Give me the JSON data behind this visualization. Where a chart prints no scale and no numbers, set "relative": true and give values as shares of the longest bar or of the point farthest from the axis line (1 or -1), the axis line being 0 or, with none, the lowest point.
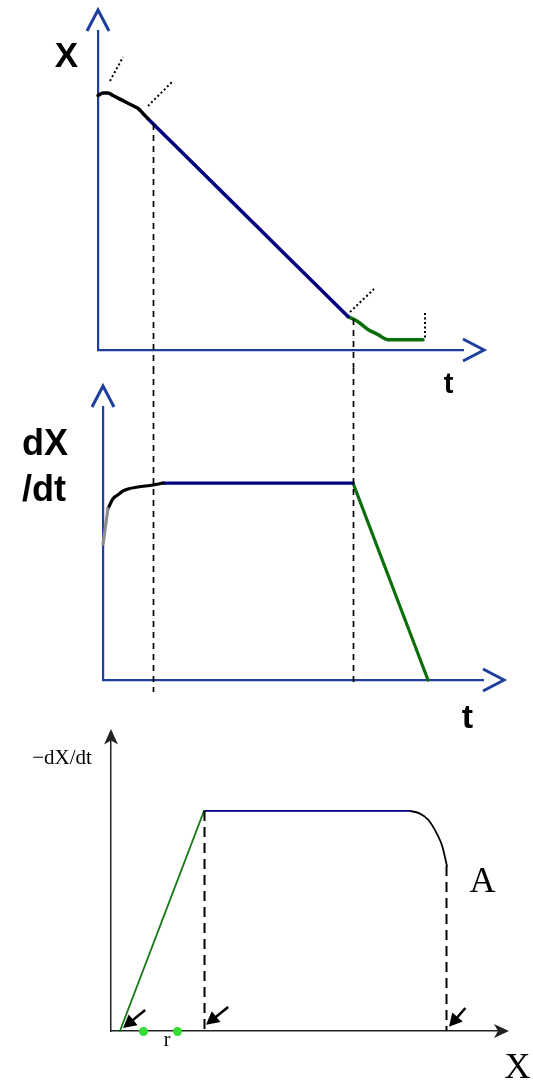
{
  "chart_data": [
    {
      "type": "line",
      "xlabel": "t",
      "ylabel": "X",
      "relative": true,
      "categories": [
        null,
        null,
        null,
        null,
        null,
        null,
        null,
        null,
        null,
        null,
        null,
        null,
        null,
        null,
        null,
        null,
        null,
        null,
        null,
        null,
        null,
        null,
        null,
        null,
        null,
        null,
        null,
        null,
        null,
        null,
        null,
        null,
        null,
        null,
        null,
        null,
        null,
        null,
        null,
        null,
        null,
        null,
        null,
        null,
        null,
        null,
        null,
        null,
        null,
        null,
        null,
        null,
        null,
        null,
        null,
        null,
        null,
        null,
        null,
        null,
        null,
        null,
        null,
        null,
        null,
        null,
        null,
        null,
        null,
        null,
        null,
        null,
        null,
        null
      ],
      "series": [
        {
          "color": "#000000",
          "values": [
            0.99,
            1,
            1,
            0.99,
            0.98,
            0.97,
            0.96,
            0.95,
            0.94,
            0.92,
            0.9,
            null,
            null,
            null,
            null,
            null,
            null,
            null,
            null,
            null,
            null,
            null,
            null,
            null,
            null,
            null,
            null,
            null,
            null,
            null,
            null,
            null,
            null,
            null,
            null,
            null,
            null,
            null,
            null,
            null,
            null,
            null,
            null,
            null,
            null,
            null,
            null,
            null,
            null,
            null,
            null,
            null,
            null,
            null,
            null,
            null,
            null,
            null,
            null,
            null,
            null,
            null,
            null,
            null,
            null,
            null,
            null,
            null,
            null,
            null,
            null,
            null,
            null,
            null
          ]
        },
        {
          "color": "#000080",
          "values": [
            null,
            null,
            null,
            null,
            null,
            null,
            null,
            null,
            null,
            null,
            0.9,
            null,
            null,
            null,
            null,
            null,
            null,
            null,
            null,
            null,
            null,
            null,
            null,
            null,
            null,
            null,
            null,
            null,
            null,
            null,
            null,
            null,
            null,
            null,
            null,
            null,
            null,
            null,
            null,
            null,
            null,
            null,
            null,
            null,
            null,
            null,
            null,
            null,
            null,
            null,
            0.13,
            null,
            null,
            null,
            null,
            null,
            null,
            null,
            null,
            null,
            null,
            null,
            null,
            null,
            null,
            null,
            null,
            null,
            null,
            null,
            null,
            null,
            null,
            null
          ]
        },
        {
          "color": "#0a6e0a",
          "values": [
            null,
            null,
            null,
            null,
            null,
            null,
            null,
            null,
            null,
            null,
            null,
            null,
            null,
            null,
            null,
            null,
            null,
            null,
            null,
            null,
            null,
            null,
            null,
            null,
            null,
            null,
            null,
            null,
            null,
            null,
            null,
            null,
            null,
            null,
            null,
            null,
            null,
            null,
            null,
            null,
            null,
            null,
            null,
            null,
            null,
            null,
            null,
            null,
            null,
            null,
            0.13,
            null,
            0.11,
            null,
            0.08,
            null,
            0.06,
            null,
            0.04,
            null,
            0.04,
            null,
            0.04,
            null,
            null,
            0.04,
            null,
            null,
            null,
            null,
            null,
            null,
            null,
            null
          ]
        }
      ]
    },
    {
      "type": "line",
      "xlabel": "t",
      "ylabel": "dX\n/dt",
      "relative": true,
      "categories": [
        null,
        null,
        null,
        null,
        null,
        null,
        null,
        null,
        null,
        null,
        null,
        null,
        null,
        null,
        null,
        null,
        null,
        null,
        null,
        null,
        null,
        null,
        null,
        null,
        null,
        null,
        null,
        null,
        null,
        null,
        null,
        null,
        null,
        null,
        null,
        null,
        null,
        null,
        null,
        null,
        null,
        null,
        null,
        null,
        null,
        null,
        null,
        null,
        null,
        null,
        null,
        null,
        null,
        null,
        null,
        null,
        null,
        null,
        null,
        null,
        null,
        null,
        null,
        null,
        null,
        null,
        null,
        null,
        null,
        null,
        null,
        null,
        null,
        null,
        null,
        null,
        null
      ],
      "series": [
        {
          "color": "#8c8c8c",
          "values": [
            0.69,
            0.87,
            null,
            null,
            null,
            null,
            null,
            null,
            null,
            null,
            null,
            null,
            null,
            null,
            null,
            null,
            null,
            null,
            null,
            null,
            null,
            null,
            null,
            null,
            null,
            null,
            null,
            null,
            null,
            null,
            null,
            null,
            null,
            null,
            null,
            null,
            null,
            null,
            null,
            null,
            null,
            null,
            null,
            null,
            null,
            null,
            null,
            null,
            null,
            null,
            null,
            null,
            null,
            null,
            null,
            null,
            null,
            null,
            null,
            null,
            null,
            null,
            null,
            null,
            null,
            null,
            null,
            null,
            null,
            null,
            null,
            null,
            null,
            null,
            null,
            null,
            null
          ]
        },
        {
          "color": "#000000",
          "values": [
            null,
            0.87,
            0.92,
            0.94,
            0.96,
            0.97,
            null,
            0.98,
            null,
            null,
            0.99,
            null,
            1,
            null,
            null,
            null,
            null,
            null,
            null,
            null,
            null,
            null,
            null,
            null,
            null,
            null,
            null,
            null,
            null,
            null,
            null,
            null,
            null,
            null,
            null,
            null,
            null,
            null,
            null,
            null,
            null,
            null,
            null,
            null,
            null,
            null,
            null,
            null,
            null,
            null,
            null,
            null,
            null,
            null,
            null,
            null,
            null,
            null,
            null,
            null,
            null,
            null,
            null,
            null,
            null,
            null,
            null,
            null,
            null,
            null,
            null,
            null,
            null,
            null,
            null,
            null,
            null
          ]
        },
        {
          "color": "#000080",
          "values": [
            null,
            null,
            null,
            null,
            null,
            null,
            null,
            null,
            null,
            null,
            null,
            null,
            1,
            null,
            null,
            null,
            null,
            null,
            null,
            null,
            null,
            null,
            null,
            null,
            null,
            null,
            null,
            null,
            null,
            null,
            null,
            null,
            null,
            null,
            null,
            null,
            null,
            null,
            null,
            null,
            null,
            null,
            null,
            null,
            null,
            null,
            null,
            null,
            null,
            null,
            1,
            null,
            null,
            null,
            null,
            null,
            null,
            null,
            null,
            null,
            null,
            null,
            null,
            null,
            null,
            null,
            null,
            null,
            null,
            null,
            null,
            null,
            null,
            null,
            null,
            null,
            null
          ]
        },
        {
          "color": "#0a6e0a",
          "values": [
            null,
            null,
            null,
            null,
            null,
            null,
            null,
            null,
            null,
            null,
            null,
            null,
            null,
            null,
            null,
            null,
            null,
            null,
            null,
            null,
            null,
            null,
            null,
            null,
            null,
            null,
            null,
            null,
            null,
            null,
            null,
            null,
            null,
            null,
            null,
            null,
            null,
            null,
            null,
            null,
            null,
            null,
            null,
            null,
            null,
            null,
            null,
            null,
            null,
            null,
            1,
            null,
            null,
            null,
            null,
            null,
            null,
            null,
            null,
            null,
            null,
            null,
            null,
            null,
            null,
            0,
            null,
            null,
            null,
            null,
            null,
            null,
            null,
            null,
            null,
            null,
            null
          ]
        }
      ]
    },
    {
      "type": "line",
      "xlabel": "X",
      "ylabel": "−dX/dt",
      "relative": true,
      "categories": [
        null,
        null,
        null,
        null,
        null,
        null,
        null,
        null,
        null,
        null,
        null,
        null,
        null,
        null,
        null,
        null,
        null,
        null,
        null,
        null,
        null,
        null,
        null,
        null,
        null,
        null,
        null,
        null,
        null,
        null,
        null,
        null,
        null,
        null,
        null,
        null,
        null,
        null,
        null,
        null,
        null,
        null,
        null,
        null,
        null,
        null,
        null,
        null,
        null,
        null,
        null,
        null,
        null,
        null,
        null,
        null,
        null,
        null,
        null,
        null,
        null,
        null,
        null,
        null,
        null,
        null,
        null,
        null,
        null,
        null,
        null,
        null,
        null,
        null,
        null,
        null,
        null,
        null,
        null,
        null,
        null,
        null,
        null,
        null,
        null
      ],
      "series": [
        {
          "color": "#1a7a1a",
          "values": [
            null,
            null,
            0,
            null,
            null,
            null,
            null,
            null,
            null,
            null,
            null,
            null,
            null,
            null,
            null,
            null,
            null,
            null,
            null,
            null,
            1,
            null,
            null,
            null,
            null,
            null,
            null,
            null,
            null,
            null,
            null,
            null,
            null,
            null,
            null,
            null,
            null,
            null,
            null,
            null,
            null,
            null,
            null,
            null,
            null,
            null,
            null,
            null,
            null,
            null,
            null,
            null,
            null,
            null,
            null,
            null,
            null,
            null,
            null,
            null,
            null,
            null,
            null,
            null,
            null,
            null,
            null,
            null,
            null,
            null,
            null,
            null,
            null,
            null,
            null,
            null,
            null,
            null,
            null,
            null,
            null,
            null,
            null,
            null,
            null
          ]
        },
        {
          "color": "#000080",
          "values": [
            null,
            null,
            null,
            null,
            null,
            null,
            null,
            null,
            null,
            null,
            null,
            null,
            null,
            null,
            null,
            null,
            null,
            null,
            null,
            null,
            1,
            null,
            null,
            null,
            null,
            null,
            null,
            null,
            null,
            null,
            null,
            null,
            null,
            null,
            null,
            null,
            null,
            null,
            null,
            null,
            null,
            null,
            null,
            null,
            null,
            null,
            null,
            null,
            null,
            null,
            null,
            null,
            null,
            null,
            null,
            null,
            null,
            null,
            null,
            null,
            null,
            null,
            null,
            null,
            1,
            null,
            null,
            null,
            null,
            null,
            null,
            null,
            null,
            null,
            null,
            null,
            null,
            null,
            null,
            null,
            null,
            null,
            null,
            null,
            null
          ]
        },
        {
          "color": "#000000",
          "values": [
            null,
            null,
            null,
            null,
            null,
            null,
            null,
            null,
            null,
            null,
            null,
            null,
            null,
            null,
            null,
            null,
            null,
            null,
            null,
            null,
            null,
            null,
            null,
            null,
            null,
            null,
            null,
            null,
            null,
            null,
            null,
            null,
            null,
            null,
            null,
            null,
            null,
            null,
            null,
            null,
            null,
            null,
            null,
            null,
            null,
            null,
            null,
            null,
            null,
            null,
            null,
            null,
            null,
            null,
            null,
            null,
            null,
            null,
            null,
            null,
            null,
            null,
            null,
            null,
            1,
            null,
            0.99,
            null,
            0.96,
            null,
            0.89,
            0.84,
            0.75,
            null,
            null,
            null,
            null,
            null,
            null,
            null,
            null,
            null,
            null,
            null,
            null
          ]
        }
      ],
      "annotations": [
        "A",
        "r"
      ]
    }
  ]
}
